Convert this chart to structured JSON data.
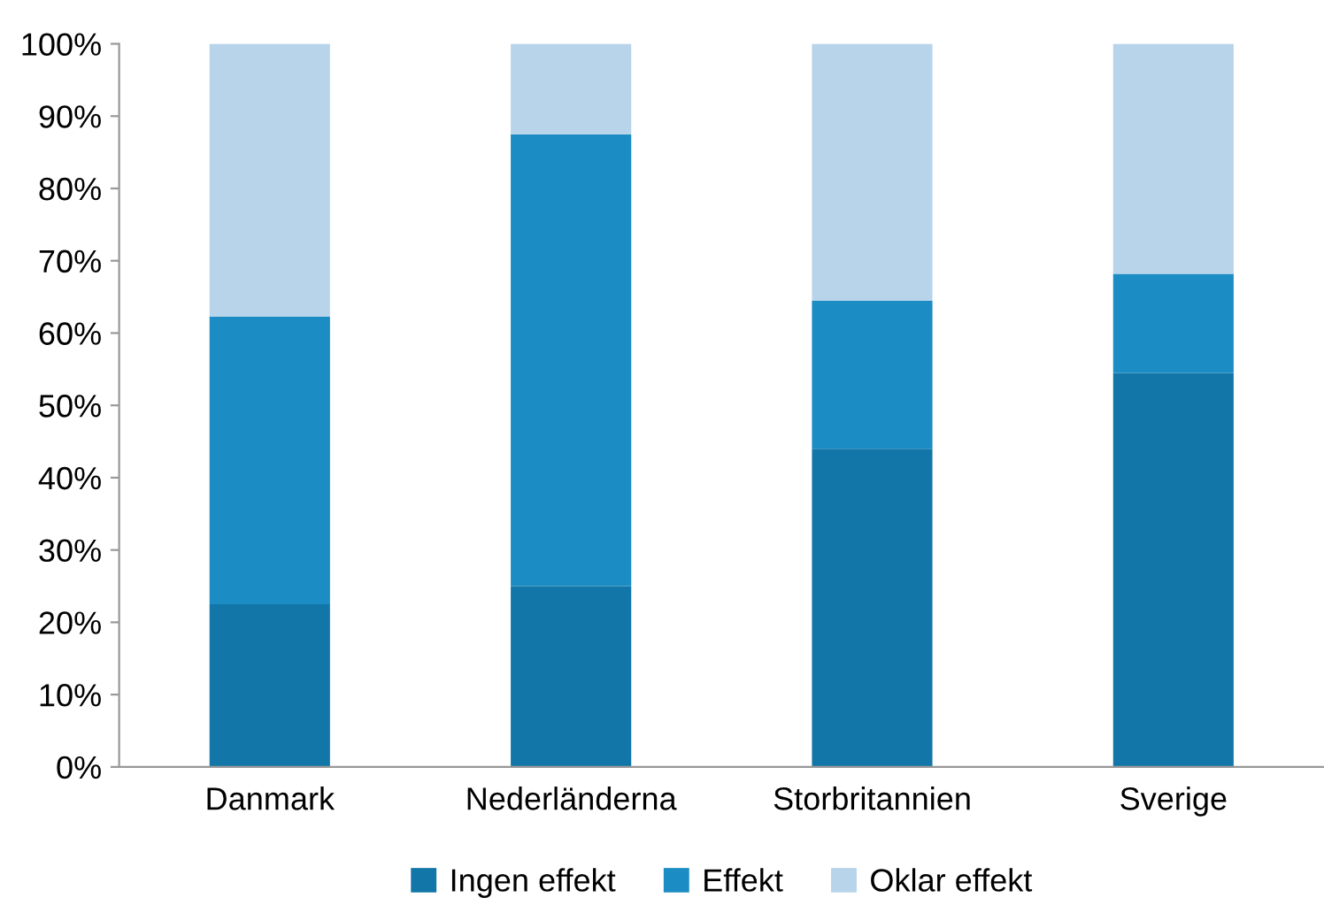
{
  "chart_data": {
    "type": "bar",
    "stacked": true,
    "categories": [
      "Danmark",
      "Nederländerna",
      "Storbritannien",
      "Sverige"
    ],
    "series": [
      {
        "name": "Ingen effekt",
        "color": "#1277a8",
        "values": [
          22.5,
          25,
          44,
          54.5
        ]
      },
      {
        "name": "Effekt",
        "color": "#1b8cc4",
        "values": [
          39.8,
          62.5,
          20.5,
          13.7
        ]
      },
      {
        "name": "Oklar effekt",
        "color": "#b8d4ea",
        "values": [
          37.7,
          12.5,
          35.5,
          31.8
        ]
      }
    ],
    "ylim": [
      0,
      100
    ],
    "yticks": [
      {
        "value": 0,
        "label": "0%"
      },
      {
        "value": 10,
        "label": "10%"
      },
      {
        "value": 20,
        "label": "20%"
      },
      {
        "value": 30,
        "label": "30%"
      },
      {
        "value": 40,
        "label": "40%"
      },
      {
        "value": 50,
        "label": "50%"
      },
      {
        "value": 60,
        "label": "60%"
      },
      {
        "value": 70,
        "label": "70%"
      },
      {
        "value": 80,
        "label": "80%"
      },
      {
        "value": 90,
        "label": "90%"
      },
      {
        "value": 100,
        "label": "100%"
      }
    ],
    "grid": false,
    "legend": "bottom"
  }
}
